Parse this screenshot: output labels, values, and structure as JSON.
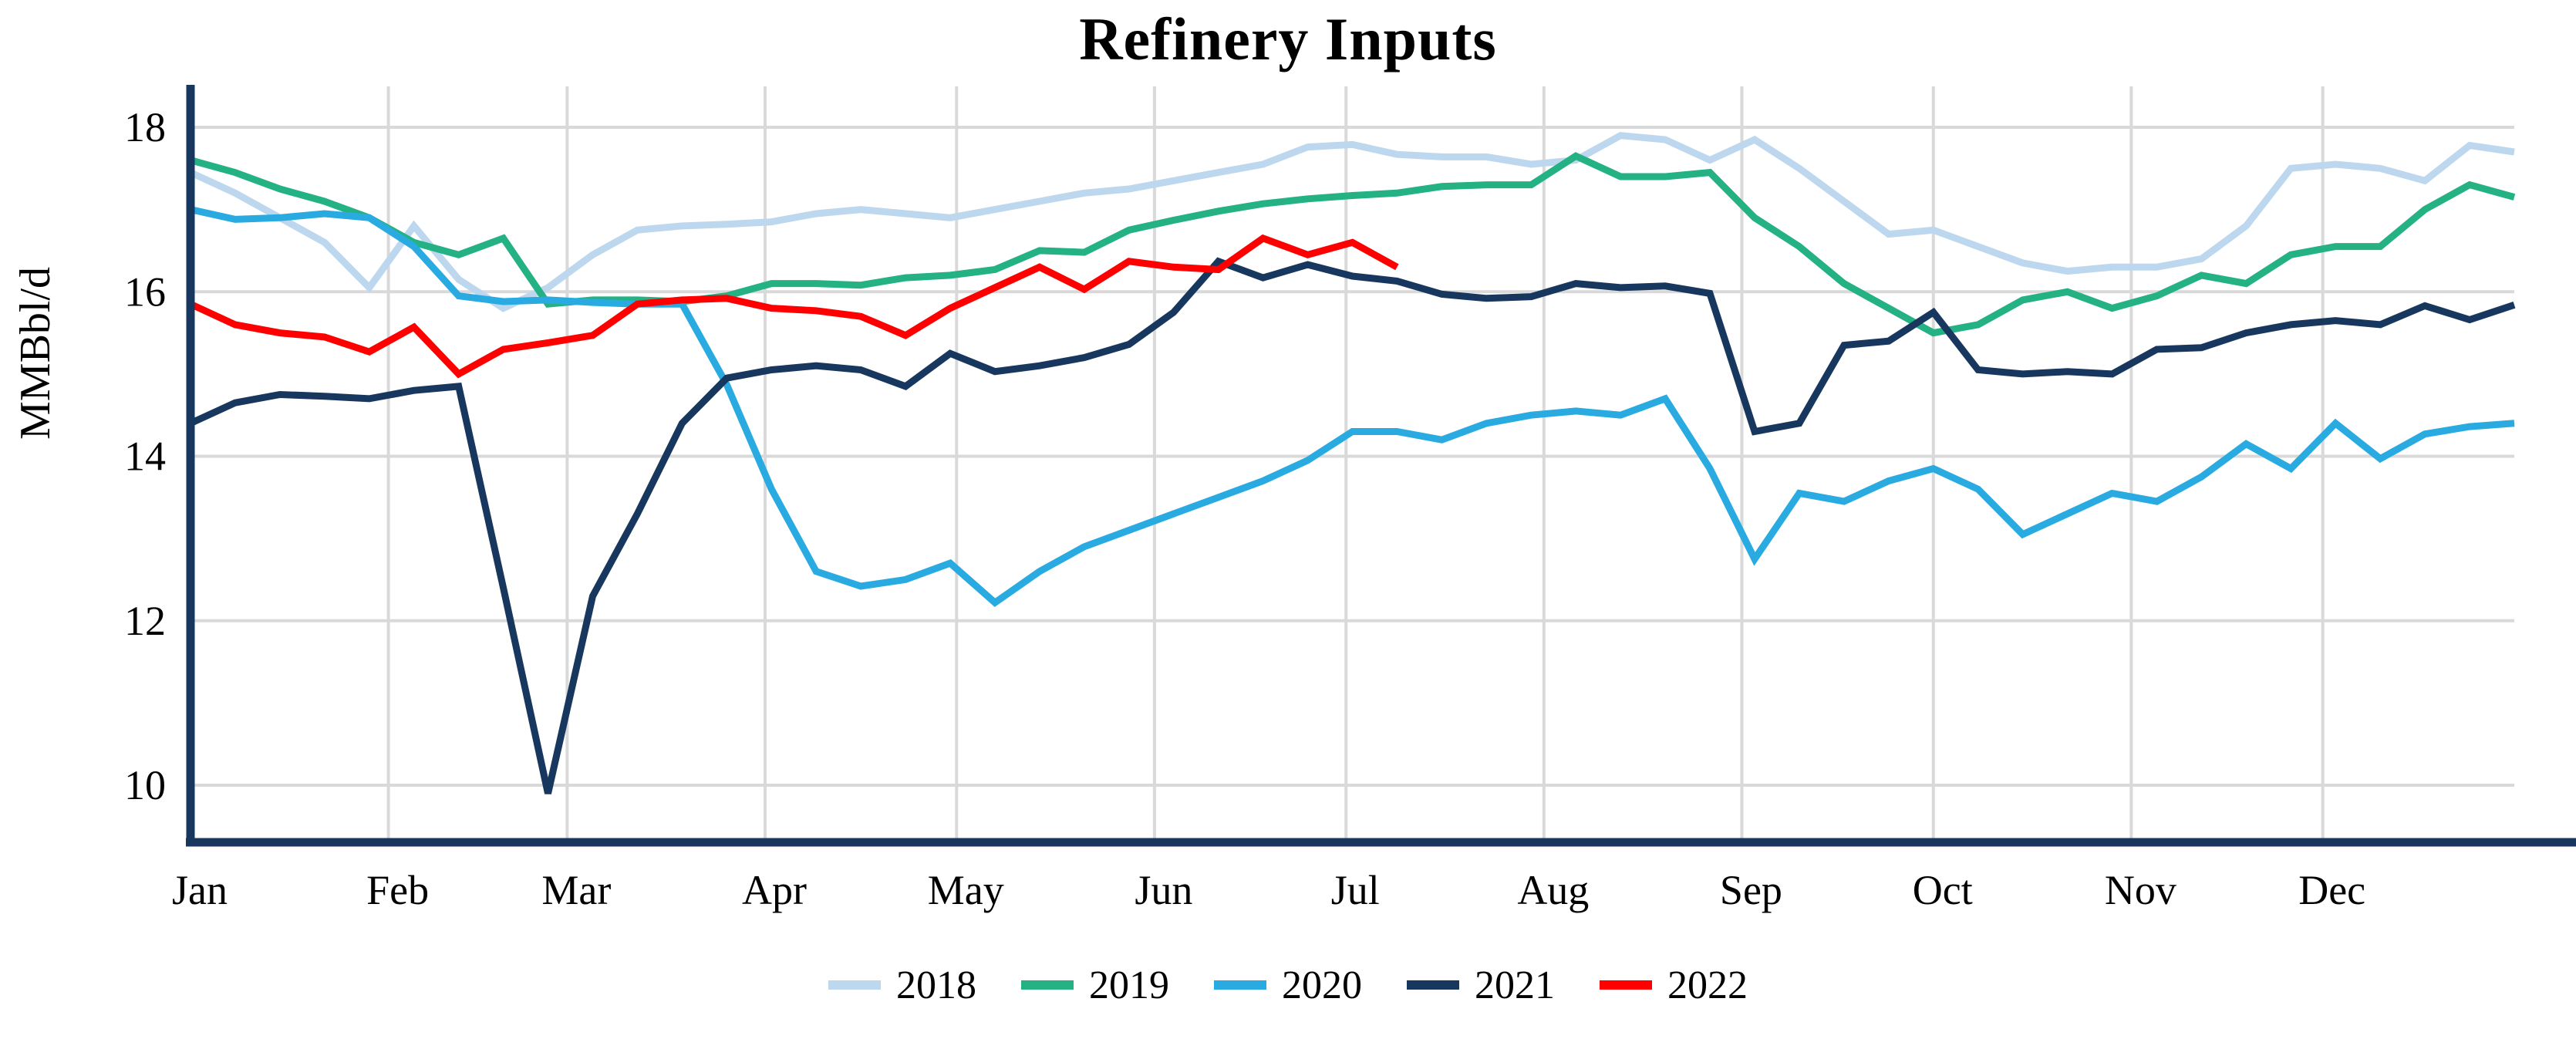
{
  "page": {
    "background": "#ffffff"
  },
  "chart_data": {
    "type": "line",
    "title": "Refinery Inputs",
    "ylabel": "MMBbl/d",
    "xlabel": "",
    "frequency": "weekly",
    "grid": true,
    "legend_position": "bottom",
    "x_axis": {
      "months": [
        "Jan",
        "Feb",
        "Mar",
        "Apr",
        "May",
        "Jun",
        "Jul",
        "Aug",
        "Sep",
        "Oct",
        "Nov",
        "Dec"
      ]
    },
    "y_axis": {
      "ticks": [
        18,
        16,
        14,
        12,
        10
      ],
      "ylim": [
        9.3,
        18.5
      ],
      "unit": "MMBbl/d"
    },
    "colors": {
      "grid": "#D9D9D9",
      "axis": "#17375E",
      "text": "#000000"
    },
    "series": [
      {
        "name": "2018",
        "color": "#BDD7EE",
        "values": [
          17.45,
          17.2,
          16.9,
          16.6,
          16.05,
          16.8,
          16.15,
          15.8,
          16.05,
          16.45,
          16.75,
          16.8,
          16.82,
          16.85,
          16.95,
          17.0,
          16.95,
          16.9,
          17.0,
          17.1,
          17.2,
          17.25,
          17.35,
          17.45,
          17.55,
          17.76,
          17.79,
          17.67,
          17.64,
          17.64,
          17.55,
          17.6,
          17.9,
          17.85,
          17.6,
          17.85,
          17.5,
          17.1,
          16.7,
          16.75,
          16.55,
          16.35,
          16.25,
          16.3,
          16.3,
          16.4,
          16.8,
          17.5,
          17.55,
          17.5,
          17.35,
          17.78,
          17.7
        ]
      },
      {
        "name": "2019",
        "color": "#24B183",
        "values": [
          17.6,
          17.45,
          17.25,
          17.1,
          16.9,
          16.6,
          16.45,
          16.65,
          15.85,
          15.9,
          15.9,
          15.88,
          15.95,
          16.1,
          16.1,
          16.08,
          16.17,
          16.2,
          16.27,
          16.5,
          16.48,
          16.75,
          16.87,
          16.98,
          17.07,
          17.13,
          17.17,
          17.2,
          17.28,
          17.3,
          17.3,
          17.65,
          17.4,
          17.4,
          17.45,
          16.9,
          16.55,
          16.1,
          15.8,
          15.5,
          15.6,
          15.9,
          16.0,
          15.8,
          15.95,
          16.2,
          16.1,
          16.45,
          16.55,
          16.55,
          17.0,
          17.3,
          17.15
        ]
      },
      {
        "name": "2020",
        "color": "#29ABE2",
        "values": [
          17.0,
          16.88,
          16.9,
          16.95,
          16.9,
          16.55,
          15.95,
          15.88,
          15.9,
          15.87,
          15.85,
          15.85,
          14.87,
          13.6,
          12.6,
          12.42,
          12.5,
          12.7,
          12.22,
          12.6,
          12.9,
          13.1,
          13.3,
          13.5,
          13.7,
          13.95,
          14.3,
          14.3,
          14.2,
          14.4,
          14.5,
          14.55,
          14.5,
          14.7,
          13.85,
          12.75,
          13.55,
          13.45,
          13.7,
          13.85,
          13.6,
          13.05,
          13.3,
          13.55,
          13.45,
          13.75,
          14.15,
          13.85,
          14.4,
          13.97,
          14.27,
          14.36,
          14.4
        ]
      },
      {
        "name": "2021",
        "color": "#17375E",
        "values": [
          14.4,
          14.65,
          14.75,
          14.73,
          14.7,
          14.8,
          14.85,
          12.4,
          9.9,
          12.3,
          13.3,
          14.4,
          14.95,
          15.05,
          15.1,
          15.05,
          14.85,
          15.25,
          15.03,
          15.1,
          15.2,
          15.36,
          15.75,
          16.37,
          16.17,
          16.33,
          16.19,
          16.13,
          15.97,
          15.92,
          15.94,
          16.1,
          16.05,
          16.07,
          15.98,
          14.3,
          14.4,
          15.35,
          15.4,
          15.75,
          15.05,
          15.0,
          15.03,
          15.0,
          15.3,
          15.32,
          15.5,
          15.6,
          15.65,
          15.6,
          15.83,
          15.66,
          15.84
        ]
      },
      {
        "name": "2022",
        "color": "#FE0000",
        "values": [
          15.85,
          15.6,
          15.5,
          15.45,
          15.27,
          15.57,
          15.0,
          15.3,
          15.38,
          15.47,
          15.85,
          15.9,
          15.92,
          15.8,
          15.77,
          15.7,
          15.47,
          15.8,
          16.05,
          16.3,
          16.03,
          16.37,
          16.3,
          16.27,
          16.65,
          16.45,
          16.6,
          16.3
        ]
      }
    ]
  }
}
